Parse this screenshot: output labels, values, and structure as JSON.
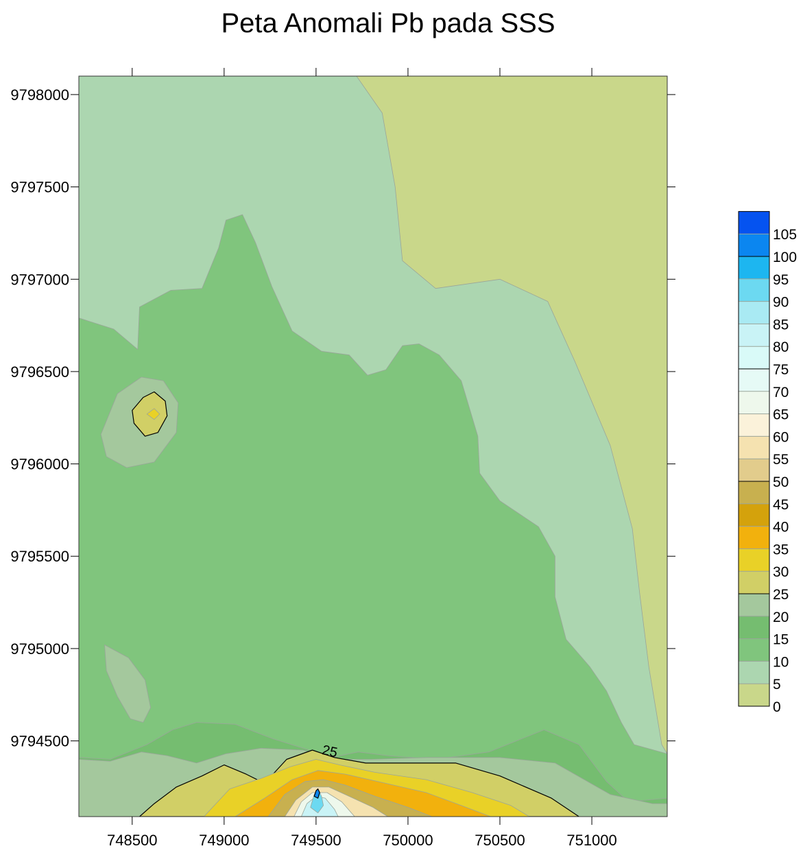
{
  "chart_data": {
    "type": "heatmap",
    "subtype": "filled-contour-map",
    "title": "Peta Anomali Pb pada SSS",
    "xlabel": "",
    "ylabel": "",
    "xlim": [
      748210,
      751410
    ],
    "ylim": [
      9794090,
      9798100
    ],
    "x_ticks": [
      748500,
      749000,
      749500,
      750000,
      750500,
      751000
    ],
    "y_ticks": [
      9794500,
      9795000,
      9795500,
      9796000,
      9796500,
      9797000,
      9797500,
      9798000
    ],
    "x_tick_labels": [
      "748500",
      "749000",
      "749500",
      "750000",
      "750500",
      "751000"
    ],
    "y_tick_labels": [
      "9794500",
      "9795000",
      "9795500",
      "9796000",
      "9796500",
      "9797000",
      "9797500",
      "9798000"
    ],
    "contour_labels": [
      {
        "text": "25",
        "x": 749570,
        "y": 9794420
      }
    ],
    "legend": {
      "position": "right",
      "levels": [
        0,
        5,
        10,
        15,
        20,
        25,
        30,
        35,
        40,
        45,
        50,
        55,
        60,
        65,
        70,
        75,
        80,
        85,
        90,
        95,
        100,
        105
      ],
      "labels": [
        "0",
        "5",
        "10",
        "15",
        "20",
        "25",
        "30",
        "35",
        "40",
        "45",
        "50",
        "55",
        "60",
        "65",
        "70",
        "75",
        "80",
        "85",
        "90",
        "95",
        "100",
        "105"
      ],
      "colors": [
        "#c9d78a",
        "#acd6b0",
        "#80c57d",
        "#75bd70",
        "#a4c89d",
        "#d1cf66",
        "#e9d127",
        "#f2b10d",
        "#d4a20c",
        "#c8b04f",
        "#e2cc8c",
        "#f5e2b0",
        "#fbf2da",
        "#eef8ec",
        "#e6faf6",
        "#d9faf8",
        "#c9f3f6",
        "#a9eaf3",
        "#6cd9f1",
        "#1db6f0",
        "#0b86f0",
        "#0553f0"
      ]
    },
    "regions": [
      {
        "level": 0,
        "points": [
          [
            749720,
            9798100
          ],
          [
            751410,
            9798100
          ],
          [
            751410,
            9794430
          ],
          [
            751380,
            9794480
          ],
          [
            751310,
            9794900
          ],
          [
            751260,
            9795300
          ],
          [
            751220,
            9795650
          ],
          [
            751100,
            9796100
          ],
          [
            750910,
            9796550
          ],
          [
            750760,
            9796880
          ],
          [
            750500,
            9797000
          ],
          [
            750150,
            9796950
          ],
          [
            749970,
            9797100
          ],
          [
            749930,
            9797500
          ],
          [
            749860,
            9797900
          ]
        ]
      },
      {
        "level": 10,
        "points": [
          [
            748210,
            9796790
          ],
          [
            748400,
            9796730
          ],
          [
            748530,
            9796620
          ],
          [
            748540,
            9796850
          ],
          [
            748710,
            9796940
          ],
          [
            748880,
            9796950
          ],
          [
            748970,
            9797170
          ],
          [
            749010,
            9797320
          ],
          [
            749100,
            9797350
          ],
          [
            749170,
            9797200
          ],
          [
            749260,
            9796960
          ],
          [
            749370,
            9796720
          ],
          [
            749530,
            9796610
          ],
          [
            749680,
            9796590
          ],
          [
            749780,
            9796480
          ],
          [
            749880,
            9796510
          ],
          [
            749970,
            9796640
          ],
          [
            750060,
            9796650
          ],
          [
            750170,
            9796590
          ],
          [
            750290,
            9796450
          ],
          [
            750380,
            9796150
          ],
          [
            750390,
            9795950
          ],
          [
            750500,
            9795800
          ],
          [
            750710,
            9795660
          ],
          [
            750800,
            9795500
          ],
          [
            750800,
            9795280
          ],
          [
            750860,
            9795050
          ],
          [
            750990,
            9794900
          ],
          [
            751080,
            9794770
          ],
          [
            751160,
            9794600
          ],
          [
            751230,
            9794480
          ],
          [
            751410,
            9794430
          ],
          [
            751410,
            9794090
          ],
          [
            748210,
            9794090
          ]
        ]
      },
      {
        "level": 15,
        "points": [
          [
            748210,
            9794410
          ],
          [
            748380,
            9794400
          ],
          [
            748580,
            9794480
          ],
          [
            748720,
            9794560
          ],
          [
            748850,
            9794600
          ],
          [
            749060,
            9794590
          ],
          [
            749270,
            9794510
          ],
          [
            749430,
            9794460
          ],
          [
            749580,
            9794410
          ],
          [
            749730,
            9794440
          ],
          [
            749890,
            9794420
          ],
          [
            750150,
            9794400
          ],
          [
            750440,
            9794440
          ],
          [
            750740,
            9794560
          ],
          [
            750930,
            9794480
          ],
          [
            751080,
            9794280
          ],
          [
            751200,
            9794170
          ],
          [
            751410,
            9794190
          ],
          [
            751410,
            9794090
          ],
          [
            748210,
            9794090
          ]
        ]
      },
      {
        "level": 20,
        "points": [
          [
            748210,
            9794400
          ],
          [
            748380,
            9794390
          ],
          [
            748550,
            9794440
          ],
          [
            748690,
            9794420
          ],
          [
            748850,
            9794380
          ],
          [
            749010,
            9794430
          ],
          [
            749200,
            9794460
          ],
          [
            749430,
            9794450
          ],
          [
            749600,
            9794400
          ],
          [
            749800,
            9794400
          ],
          [
            750100,
            9794410
          ],
          [
            750500,
            9794410
          ],
          [
            750800,
            9794380
          ],
          [
            751100,
            9794210
          ],
          [
            751330,
            9794160
          ],
          [
            751410,
            9794160
          ],
          [
            751410,
            9794090
          ],
          [
            748210,
            9794090
          ]
        ]
      },
      {
        "level": 20,
        "points": [
          [
            748330,
            9796160
          ],
          [
            748420,
            9796380
          ],
          [
            748550,
            9796470
          ],
          [
            748670,
            9796450
          ],
          [
            748750,
            9796330
          ],
          [
            748740,
            9796170
          ],
          [
            748620,
            9796010
          ],
          [
            748470,
            9795980
          ],
          [
            748360,
            9796040
          ]
        ]
      },
      {
        "level": 20,
        "points": [
          [
            748350,
            9795020
          ],
          [
            748480,
            9794950
          ],
          [
            748570,
            9794830
          ],
          [
            748600,
            9794680
          ],
          [
            748560,
            9794600
          ],
          [
            748490,
            9794620
          ],
          [
            748420,
            9794740
          ],
          [
            748360,
            9794880
          ]
        ]
      },
      {
        "level": 25,
        "points": [
          [
            748540,
            9794090
          ],
          [
            748620,
            9794160
          ],
          [
            748740,
            9794250
          ],
          [
            748880,
            9794310
          ],
          [
            749000,
            9794370
          ],
          [
            749120,
            9794320
          ],
          [
            749220,
            9794270
          ],
          [
            749340,
            9794400
          ],
          [
            749480,
            9794450
          ],
          [
            749600,
            9794410
          ],
          [
            749770,
            9794380
          ],
          [
            749990,
            9794380
          ],
          [
            750260,
            9794380
          ],
          [
            750500,
            9794310
          ],
          [
            750780,
            9794190
          ],
          [
            750930,
            9794090
          ]
        ]
      },
      {
        "level": 25,
        "points": [
          [
            748500,
            9796290
          ],
          [
            748560,
            9796360
          ],
          [
            748620,
            9796390
          ],
          [
            748680,
            9796340
          ],
          [
            748690,
            9796260
          ],
          [
            748640,
            9796170
          ],
          [
            748570,
            9796150
          ],
          [
            748510,
            9796220
          ]
        ]
      },
      {
        "level": 30,
        "points": [
          [
            748890,
            9794090
          ],
          [
            749030,
            9794240
          ],
          [
            749210,
            9794300
          ],
          [
            749360,
            9794360
          ],
          [
            749500,
            9794400
          ],
          [
            749630,
            9794370
          ],
          [
            749820,
            9794330
          ],
          [
            750100,
            9794290
          ],
          [
            750350,
            9794220
          ],
          [
            750560,
            9794150
          ],
          [
            750660,
            9794090
          ]
        ]
      },
      {
        "level": 30,
        "points": [
          [
            748580,
            9796270
          ],
          [
            748620,
            9796300
          ],
          [
            748650,
            9796270
          ],
          [
            748620,
            9796240
          ]
        ]
      },
      {
        "level": 35,
        "points": [
          [
            749060,
            9794090
          ],
          [
            749220,
            9794190
          ],
          [
            749370,
            9794290
          ],
          [
            749510,
            9794340
          ],
          [
            749660,
            9794320
          ],
          [
            749880,
            9794270
          ],
          [
            750100,
            9794220
          ],
          [
            750290,
            9794150
          ],
          [
            750450,
            9794090
          ]
        ]
      },
      {
        "level": 45,
        "points": [
          [
            749240,
            9794090
          ],
          [
            749330,
            9794210
          ],
          [
            749440,
            9794280
          ],
          [
            749540,
            9794290
          ],
          [
            749660,
            9794260
          ],
          [
            749820,
            9794200
          ],
          [
            750000,
            9794140
          ],
          [
            750130,
            9794090
          ]
        ]
      },
      {
        "level": 55,
        "points": [
          [
            749330,
            9794090
          ],
          [
            749390,
            9794180
          ],
          [
            749480,
            9794250
          ],
          [
            749570,
            9794250
          ],
          [
            749680,
            9794200
          ],
          [
            749810,
            9794140
          ],
          [
            749890,
            9794090
          ]
        ]
      },
      {
        "level": 65,
        "points": [
          [
            749380,
            9794090
          ],
          [
            749420,
            9794170
          ],
          [
            749480,
            9794220
          ],
          [
            749560,
            9794220
          ],
          [
            749640,
            9794170
          ],
          [
            749710,
            9794090
          ]
        ]
      },
      {
        "level": 80,
        "points": [
          [
            749420,
            9794090
          ],
          [
            749450,
            9794160
          ],
          [
            749500,
            9794200
          ],
          [
            749550,
            9794190
          ],
          [
            749600,
            9794130
          ],
          [
            749620,
            9794090
          ]
        ]
      },
      {
        "level": 90,
        "points": [
          [
            749470,
            9794140
          ],
          [
            749490,
            9794210
          ],
          [
            749510,
            9794240
          ],
          [
            749530,
            9794200
          ],
          [
            749540,
            9794150
          ],
          [
            749510,
            9794110
          ]
        ]
      },
      {
        "level": 100,
        "points": [
          [
            749490,
            9794200
          ],
          [
            749500,
            9794230
          ],
          [
            749510,
            9794240
          ],
          [
            749520,
            9794220
          ],
          [
            749510,
            9794190
          ]
        ]
      }
    ]
  }
}
